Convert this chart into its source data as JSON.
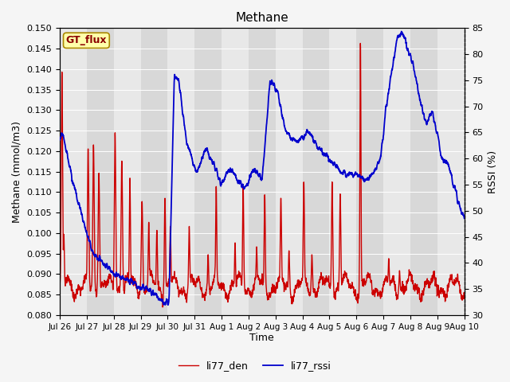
{
  "title": "Methane",
  "xlabel": "Time",
  "ylabel_left": "Methane (mmol/m3)",
  "ylabel_right": "RSSI (%)",
  "ylim_left": [
    0.08,
    0.15
  ],
  "ylim_right": [
    30,
    85
  ],
  "color_den": "#cc0000",
  "color_rssi": "#0000cc",
  "legend_labels": [
    "li77_den",
    "li77_rssi"
  ],
  "annotation_text": "GT_flux",
  "annotation_bg": "#ffffaa",
  "annotation_border": "#aa8800",
  "plot_bg_light": "#f0f0f0",
  "plot_bg_dark": "#e0e0e0",
  "grid_color": "#ffffff",
  "title_fontsize": 11,
  "label_fontsize": 9,
  "tick_fontsize": 8,
  "line_width": 1.0,
  "n_points": 3000
}
